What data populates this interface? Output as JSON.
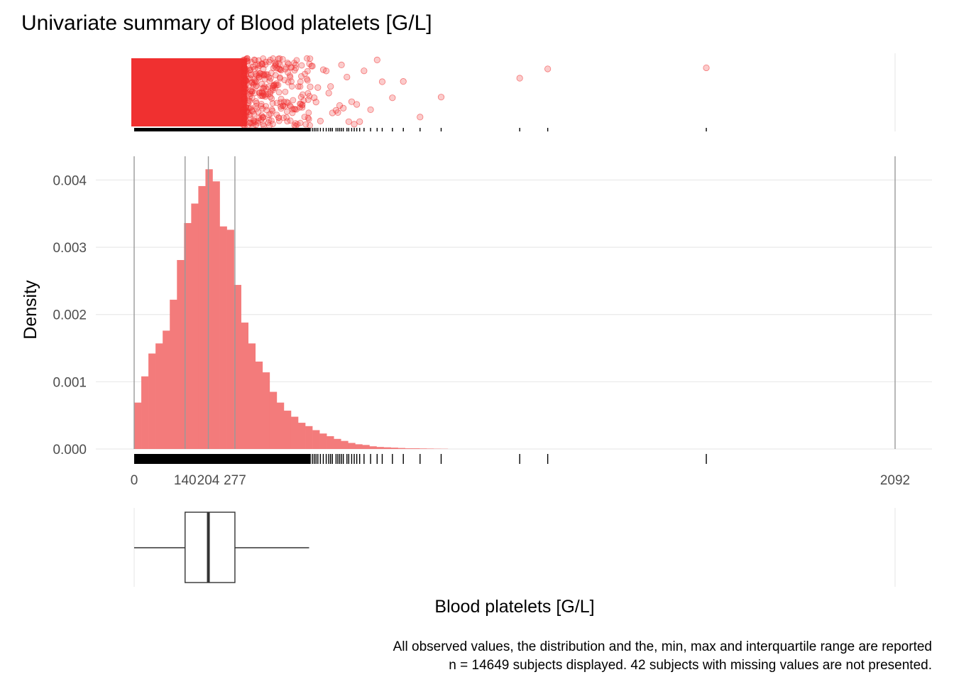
{
  "chart_data": {
    "type": "histogram",
    "title": "Univariate summary of Blood platelets [G/L]",
    "xlabel": "Blood platelets [G/L]",
    "ylabel": "Density",
    "xlim": [
      0,
      2092
    ],
    "ylim": [
      0,
      0.0043
    ],
    "y_ticks": [
      0,
      0.001,
      0.002,
      0.003,
      0.004
    ],
    "y_tick_labels": [
      "0.000",
      "0.001",
      "0.002",
      "0.003",
      "0.004"
    ],
    "x_ticks": [
      0,
      140,
      204,
      277,
      2092
    ],
    "x_tick_labels": [
      "0",
      "140",
      "204",
      "277",
      "2092"
    ],
    "summary": {
      "min": 0,
      "q1": 140,
      "median": 204,
      "q3": 277,
      "max": 2092
    },
    "reference_lines": [
      0,
      140,
      204,
      277,
      2092
    ],
    "boxplot": {
      "whisker_low": 0,
      "q1": 140,
      "median": 204,
      "q3": 277,
      "whisker_high": 481
    },
    "bin_width": 19.6,
    "bins_start": [
      0,
      19.6,
      39.2,
      58.8,
      78.4,
      98,
      117.6,
      137.2,
      156.8,
      176.4,
      196,
      215.6,
      235.2,
      254.8,
      274.4,
      294,
      313.6,
      333.2,
      352.8,
      372.4,
      392,
      411.6,
      431.2,
      450.8,
      470.4,
      490,
      509.6,
      529.2,
      548.8,
      568.4,
      588,
      607.6,
      627.2,
      646.8,
      666.4,
      686,
      705.6,
      725.2,
      744.8,
      764.4,
      784,
      803.6,
      823.2,
      842.8
    ],
    "density": [
      0.00069,
      0.00108,
      0.00142,
      0.00157,
      0.00176,
      0.00222,
      0.00281,
      0.00336,
      0.00365,
      0.00391,
      0.00416,
      0.00398,
      0.00331,
      0.00326,
      0.00244,
      0.00188,
      0.00157,
      0.0013,
      0.00114,
      0.00085,
      0.00069,
      0.00057,
      0.00048,
      0.00039,
      0.00034,
      0.00028,
      0.00023,
      0.00019,
      0.00015,
      0.00012,
      9e-05,
      7e-05,
      6e-05,
      4e-05,
      3e-05,
      2.5e-05,
      2e-05,
      1.5e-05,
      1e-05,
      1e-05,
      8e-06,
      6e-06,
      4e-06,
      3e-06
    ],
    "outlier_values": [
      484,
      490,
      495,
      500,
      505,
      512,
      520,
      528,
      535,
      540,
      545,
      555,
      560,
      565,
      570,
      575,
      585,
      590,
      598,
      605,
      612,
      620,
      632,
      650,
      668,
      682,
      710,
      740,
      786,
      844,
      1060,
      1137,
      1573
    ],
    "point_color": "#f03030",
    "bar_color": "#f37b7b",
    "caption_line1": "All observed values, the distribution and the, min, max and interquartile range are reported",
    "caption_line2": "n = 14649 subjects displayed. 42 subjects with missing values are not presented."
  }
}
